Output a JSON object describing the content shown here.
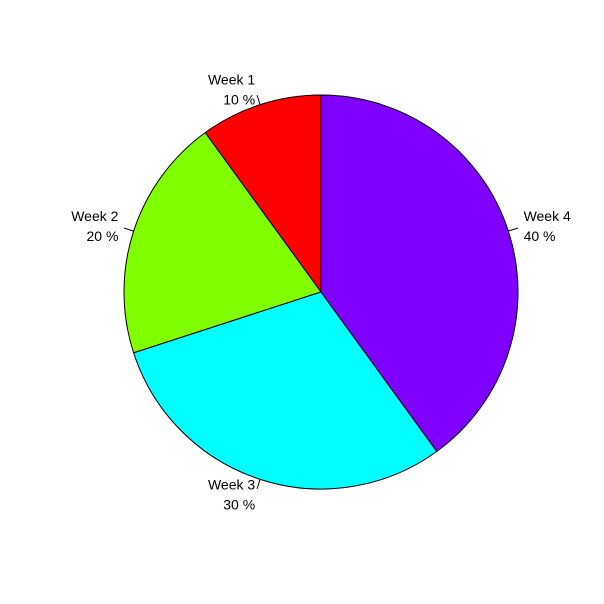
{
  "chart_data": {
    "type": "pie",
    "title": "",
    "start": "clockwise from 12 o'clock",
    "slices": [
      {
        "category": "Week 1",
        "percent_label": "10 %",
        "value": 10,
        "color": "#FF0000"
      },
      {
        "category": "Week 2",
        "percent_label": "20 %",
        "value": 20,
        "color": "#80FF00"
      },
      {
        "category": "Week 3",
        "percent_label": "30 %",
        "value": 30,
        "color": "#00FFFF"
      },
      {
        "category": "Week 4",
        "percent_label": "40 %",
        "value": 40,
        "color": "#8000FF"
      }
    ],
    "border_color": "#000000",
    "background": "#FFFFFF"
  }
}
